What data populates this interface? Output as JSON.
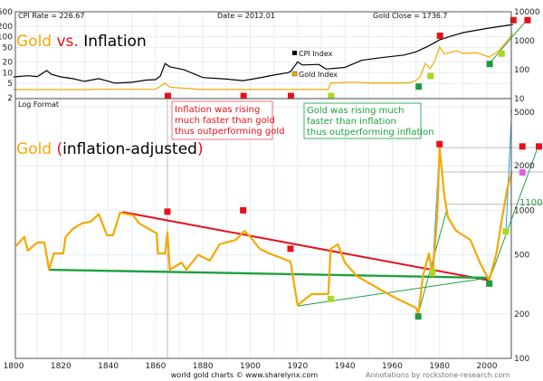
{
  "colors": {
    "gold": "#f5a800",
    "cpi": "#000000",
    "red": "#e8101a",
    "green": "#1fa040",
    "lime": "#a8d820",
    "darkgreen": "#1f9a40",
    "blue": "#2aa0e0",
    "pink": "#e060e0",
    "grid": "#e3eef7",
    "text_gray": "#777777"
  },
  "header": {
    "cpi_rate": "CPI Rate = 226.67",
    "date": "Date = 2012.01",
    "gold_close": "Gold Close = 1736.7"
  },
  "top_title": {
    "gold": "Gold",
    "vs": "vs.",
    "inflation": "Inflation"
  },
  "legend": {
    "cpi": "CPI Index",
    "gold": "Gold Index"
  },
  "bottom_panel": {
    "log_format": "Log Format",
    "title_gold": "Gold",
    "title_paren_open": "(",
    "title_rest": "inflation-adjusted",
    "title_paren_close": ")"
  },
  "annotations": {
    "red_box": [
      "Inflation was rising",
      "much faster than gold",
      "thus outperforming gold"
    ],
    "green_box": [
      "Gold was rising much",
      "faster than inflation",
      "thus outperforming inflation"
    ],
    "level_label": "1100"
  },
  "footer": {
    "source": "world gold charts © www.sharelynx.com",
    "credit": "Annotations by rockstone-research.com"
  },
  "chart_data": [
    {
      "type": "line",
      "scale": "log",
      "grid": true,
      "x_ticks": [
        1800,
        1820,
        1840,
        1860,
        1880,
        1900,
        1920,
        1940,
        1960,
        1980,
        2000
      ],
      "left_axis": {
        "ticks": [
          500,
          200,
          100,
          50,
          20,
          10,
          5,
          2
        ],
        "range": [
          2,
          500
        ]
      },
      "right_axis": {
        "ticks": [
          10000,
          1000,
          100,
          10
        ],
        "range": [
          10,
          10000
        ]
      },
      "series": [
        {
          "name": "CPI Index",
          "axis": "left",
          "points": [
            [
              1800,
              7.6
            ],
            [
              1806,
              8.2
            ],
            [
              1810,
              7.8
            ],
            [
              1814,
              11.4
            ],
            [
              1816,
              9
            ],
            [
              1820,
              7.6
            ],
            [
              1825,
              6.8
            ],
            [
              1830,
              5.7
            ],
            [
              1836,
              6.8
            ],
            [
              1843,
              5.1
            ],
            [
              1850,
              5.4
            ],
            [
              1856,
              6.2
            ],
            [
              1860,
              6.4
            ],
            [
              1862,
              8
            ],
            [
              1864,
              18
            ],
            [
              1866,
              14.6
            ],
            [
              1872,
              12
            ],
            [
              1880,
              7.3
            ],
            [
              1890,
              6.6
            ],
            [
              1897,
              6.0
            ],
            [
              1905,
              7.4
            ],
            [
              1910,
              8.6
            ],
            [
              1916,
              10
            ],
            [
              1917,
              10.8
            ],
            [
              1919,
              16
            ],
            [
              1920,
              20
            ],
            [
              1922,
              16.4
            ],
            [
              1929,
              17
            ],
            [
              1932,
              12.6
            ],
            [
              1940,
              14
            ],
            [
              1947,
              22
            ],
            [
              1955,
              26
            ],
            [
              1965,
              31
            ],
            [
              1970,
              38
            ],
            [
              1975,
              54
            ],
            [
              1980,
              82
            ],
            [
              1985,
              105
            ],
            [
              1990,
              131
            ],
            [
              2000,
              172
            ],
            [
              2011,
              220
            ]
          ]
        },
        {
          "name": "Gold Index",
          "axis": "right",
          "points": [
            [
              1800,
              20.5
            ],
            [
              1833,
              20.5
            ],
            [
              1834,
              21
            ],
            [
              1860,
              21
            ],
            [
              1862,
              27
            ],
            [
              1864,
              34
            ],
            [
              1866,
              25
            ],
            [
              1879,
              20.7
            ],
            [
              1933,
              20.7
            ],
            [
              1934,
              35
            ],
            [
              1945,
              37
            ],
            [
              1950,
              35
            ],
            [
              1967,
              35
            ],
            [
              1970,
              42
            ],
            [
              1972,
              60
            ],
            [
              1974,
              166
            ],
            [
              1976,
              108
            ],
            [
              1978,
              200
            ],
            [
              1980,
              615
            ],
            [
              1982,
              350
            ],
            [
              1987,
              450
            ],
            [
              1990,
              366
            ],
            [
              1996,
              380
            ],
            [
              2001,
              272
            ],
            [
              2005,
              450
            ],
            [
              2008,
              870
            ],
            [
              2011,
              1780
            ]
          ]
        }
      ],
      "markers": [
        {
          "color": "red",
          "x": 1865,
          "y_left": 2.3
        },
        {
          "color": "red",
          "x": 1897,
          "y_left": 2.3
        },
        {
          "color": "red",
          "x": 1917,
          "y_left": 2.3
        },
        {
          "color": "lime",
          "x": 1934,
          "y_left": 2.3
        },
        {
          "color": "darkgreen",
          "x": 1971,
          "y_left": 4.2
        },
        {
          "color": "lime",
          "x": 1976,
          "y_left": 8.3
        },
        {
          "color": "red",
          "x": 1980,
          "y_left": 110
        },
        {
          "color": "darkgreen",
          "x": 2001,
          "y_left": 18
        },
        {
          "color": "lime",
          "x": 2006,
          "y_left": 35
        },
        {
          "color": "red",
          "x": 2011,
          "y_left": 300
        },
        {
          "color": "red",
          "x": 2017,
          "y_left": 300
        }
      ]
    },
    {
      "type": "line",
      "scale": "log",
      "grid": true,
      "title": "Gold (inflation-adjusted)",
      "x_ticks": [
        1800,
        1820,
        1840,
        1860,
        1880,
        1900,
        1920,
        1940,
        1960,
        1980,
        2000
      ],
      "y_axis": {
        "ticks": [
          5000,
          2000,
          1000,
          500,
          200,
          100
        ],
        "range": [
          100,
          5000
        ],
        "side": "right"
      },
      "series": [
        {
          "name": "Gold",
          "points": [
            [
              1801,
              575
            ],
            [
              1804.5,
              662
            ],
            [
              1806,
              534
            ],
            [
              1810,
              606
            ],
            [
              1813,
              606
            ],
            [
              1815,
              397
            ],
            [
              1817,
              512
            ],
            [
              1821,
              512
            ],
            [
              1822,
              662
            ],
            [
              1825,
              748
            ],
            [
              1829,
              818
            ],
            [
              1832.5,
              837
            ],
            [
              1836,
              941
            ],
            [
              1839.5,
              678
            ],
            [
              1842,
              678
            ],
            [
              1845,
              964
            ],
            [
              1850.5,
              925
            ],
            [
              1853,
              818
            ],
            [
              1860.5,
              698
            ],
            [
              1861,
              512
            ],
            [
              1864,
              512
            ],
            [
              1865,
              711
            ],
            [
              1866,
              397
            ],
            [
              1871,
              444
            ],
            [
              1873,
              397
            ],
            [
              1878,
              500
            ],
            [
              1883,
              457
            ],
            [
              1887,
              589
            ],
            [
              1894,
              632
            ],
            [
              1897.5,
              727
            ],
            [
              1900,
              662
            ],
            [
              1904,
              549
            ],
            [
              1908,
              512
            ],
            [
              1914,
              470
            ],
            [
              1917,
              450
            ],
            [
              1920,
              229
            ],
            [
              1926,
              272
            ],
            [
              1933,
              272
            ],
            [
              1934,
              549
            ],
            [
              1937,
              589
            ],
            [
              1940,
              444
            ],
            [
              1945,
              360
            ],
            [
              1955,
              291
            ],
            [
              1962,
              253
            ],
            [
              1970,
              220
            ],
            [
              1971,
              200
            ],
            [
              1973,
              360
            ],
            [
              1975.5,
              512
            ],
            [
              1977,
              360
            ],
            [
              1979,
              900
            ],
            [
              1980,
              2650
            ],
            [
              1982,
              1277
            ],
            [
              1983.5,
              899
            ],
            [
              1987,
              727
            ],
            [
              1993,
              632
            ],
            [
              1997,
              444
            ],
            [
              2001,
              336
            ],
            [
              2004,
              512
            ],
            [
              2006.5,
              899
            ],
            [
              2008.5,
              1371
            ],
            [
              2010.5,
              1817
            ]
          ]
        }
      ],
      "trend_lines": [
        {
          "color": "red",
          "from": [
            1846,
            974
          ],
          "to": [
            2001,
            336
          ]
        },
        {
          "color": "green",
          "from": [
            1815,
            397
          ],
          "to": [
            2001,
            350
          ]
        },
        {
          "color": "green_thin",
          "from": [
            1920,
            226
          ],
          "to": [
            2001,
            350
          ]
        },
        {
          "color": "green_thin",
          "from": [
            1971,
            200
          ],
          "to": [
            1983,
            1000
          ]
        },
        {
          "color": "green_thin",
          "from": [
            2001,
            336
          ],
          "to": [
            2022,
            2800
          ]
        },
        {
          "color": "blue",
          "from": [
            1977,
            380
          ],
          "to": [
            1980,
            2650
          ]
        },
        {
          "color": "blue",
          "from": [
            2008,
            700
          ],
          "to": [
            2010.5,
            4800
          ]
        }
      ],
      "levels": [
        2650,
        1817,
        1100
      ],
      "markers": [
        {
          "color": "red",
          "x": 1980,
          "y": 2800
        },
        {
          "color": "red",
          "x": 1865,
          "y": 980
        },
        {
          "color": "red",
          "x": 1897,
          "y": 1000
        },
        {
          "color": "red",
          "x": 1917,
          "y": 550
        },
        {
          "color": "lime",
          "x": 1934,
          "y": 252
        },
        {
          "color": "lime",
          "x": 1977,
          "y": 385
        },
        {
          "color": "lime",
          "x": 2008,
          "y": 720
        },
        {
          "color": "darkgreen",
          "x": 1971,
          "y": 192
        },
        {
          "color": "darkgreen",
          "x": 2001,
          "y": 320
        },
        {
          "color": "red",
          "x": 2015,
          "y": 2700
        },
        {
          "color": "red",
          "x": 2022,
          "y": 2700
        },
        {
          "color": "pink",
          "x": 2015,
          "y": 1800
        }
      ]
    }
  ]
}
